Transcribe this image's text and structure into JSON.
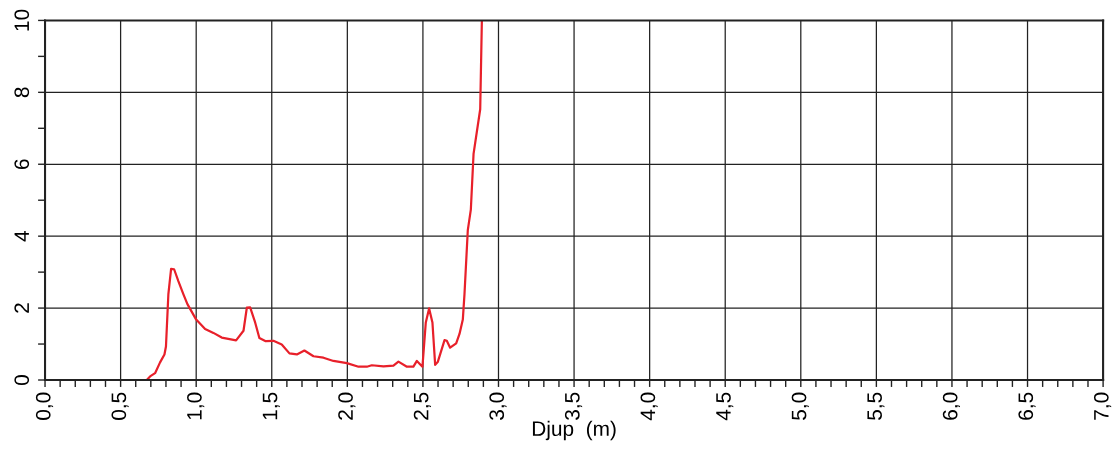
{
  "chart_data": {
    "type": "line",
    "xlabel": "Djup  (m)",
    "x": [
      0.673,
      0.695,
      0.728,
      0.761,
      0.79,
      0.8,
      0.816,
      0.834,
      0.854,
      0.882,
      0.915,
      0.942,
      1.0,
      1.059,
      1.114,
      1.169,
      1.264,
      1.313,
      1.335,
      1.357,
      1.39,
      1.418,
      1.46,
      1.511,
      1.566,
      1.617,
      1.666,
      1.716,
      1.776,
      1.842,
      1.908,
      1.997,
      2.074,
      2.129,
      2.162,
      2.239,
      2.305,
      2.338,
      2.394,
      2.437,
      2.46,
      2.497,
      2.519,
      2.541,
      2.563,
      2.581,
      2.599,
      2.643,
      2.658,
      2.68,
      2.72,
      2.742,
      2.764,
      2.775,
      2.797,
      2.817,
      2.835,
      2.879,
      2.89
    ],
    "series": [
      {
        "color": "#e8202a",
        "values": [
          0,
          0.1,
          0.19,
          0.49,
          0.71,
          0.93,
          2.39,
          3.09,
          3.08,
          2.75,
          2.39,
          2.11,
          1.68,
          1.42,
          1.31,
          1.18,
          1.1,
          1.37,
          2.01,
          2.02,
          1.6,
          1.17,
          1.08,
          1.09,
          0.99,
          0.74,
          0.71,
          0.82,
          0.66,
          0.62,
          0.53,
          0.47,
          0.37,
          0.37,
          0.41,
          0.38,
          0.4,
          0.51,
          0.37,
          0.37,
          0.53,
          0.37,
          1.6,
          1.99,
          1.6,
          0.42,
          0.51,
          1.11,
          1.09,
          0.9,
          1.02,
          1.28,
          1.68,
          2.39,
          4.17,
          4.74,
          6.29,
          7.53,
          10
        ]
      }
    ],
    "xlim": [
      0,
      7
    ],
    "ylim": [
      0,
      10
    ],
    "xticks": [
      {
        "value": 0,
        "label": "0,0"
      },
      {
        "value": 0.1,
        "label": null
      },
      {
        "value": 0.2,
        "label": null
      },
      {
        "value": 0.3,
        "label": null
      },
      {
        "value": 0.4,
        "label": null
      },
      {
        "value": 0.5,
        "label": "0,5"
      },
      {
        "value": 0.6,
        "label": null
      },
      {
        "value": 0.7,
        "label": null
      },
      {
        "value": 0.8,
        "label": null
      },
      {
        "value": 0.9,
        "label": null
      },
      {
        "value": 1,
        "label": "1,0"
      },
      {
        "value": 1.1,
        "label": null
      },
      {
        "value": 1.2,
        "label": null
      },
      {
        "value": 1.3,
        "label": null
      },
      {
        "value": 1.4,
        "label": null
      },
      {
        "value": 1.5,
        "label": "1,5"
      },
      {
        "value": 1.6,
        "label": null
      },
      {
        "value": 1.7,
        "label": null
      },
      {
        "value": 1.8,
        "label": null
      },
      {
        "value": 1.9,
        "label": null
      },
      {
        "value": 2,
        "label": "2,0"
      },
      {
        "value": 2.1,
        "label": null
      },
      {
        "value": 2.2,
        "label": null
      },
      {
        "value": 2.3,
        "label": null
      },
      {
        "value": 2.4,
        "label": null
      },
      {
        "value": 2.5,
        "label": "2,5"
      },
      {
        "value": 2.6,
        "label": null
      },
      {
        "value": 2.7,
        "label": null
      },
      {
        "value": 2.8,
        "label": null
      },
      {
        "value": 2.9,
        "label": null
      },
      {
        "value": 3,
        "label": "3,0"
      },
      {
        "value": 3.1,
        "label": null
      },
      {
        "value": 3.2,
        "label": null
      },
      {
        "value": 3.3,
        "label": null
      },
      {
        "value": 3.4,
        "label": null
      },
      {
        "value": 3.5,
        "label": "3,5"
      },
      {
        "value": 3.6,
        "label": null
      },
      {
        "value": 3.7,
        "label": null
      },
      {
        "value": 3.8,
        "label": null
      },
      {
        "value": 3.9,
        "label": null
      },
      {
        "value": 4,
        "label": "4,0"
      },
      {
        "value": 4.1,
        "label": null
      },
      {
        "value": 4.2,
        "label": null
      },
      {
        "value": 4.3,
        "label": null
      },
      {
        "value": 4.4,
        "label": null
      },
      {
        "value": 4.5,
        "label": "4,5"
      },
      {
        "value": 4.6,
        "label": null
      },
      {
        "value": 4.7,
        "label": null
      },
      {
        "value": 4.8,
        "label": null
      },
      {
        "value": 4.9,
        "label": null
      },
      {
        "value": 5,
        "label": "5,0"
      },
      {
        "value": 5.1,
        "label": null
      },
      {
        "value": 5.2,
        "label": null
      },
      {
        "value": 5.3,
        "label": null
      },
      {
        "value": 5.4,
        "label": null
      },
      {
        "value": 5.5,
        "label": "5,5"
      },
      {
        "value": 5.6,
        "label": null
      },
      {
        "value": 5.7,
        "label": null
      },
      {
        "value": 5.8,
        "label": null
      },
      {
        "value": 5.9,
        "label": null
      },
      {
        "value": 6,
        "label": "6,0"
      },
      {
        "value": 6.1,
        "label": null
      },
      {
        "value": 6.2,
        "label": null
      },
      {
        "value": 6.3,
        "label": null
      },
      {
        "value": 6.4,
        "label": null
      },
      {
        "value": 6.5,
        "label": "6,5"
      },
      {
        "value": 6.6,
        "label": null
      },
      {
        "value": 6.7,
        "label": null
      },
      {
        "value": 6.8,
        "label": null
      },
      {
        "value": 6.9,
        "label": null
      },
      {
        "value": 7,
        "label": "7,0"
      }
    ],
    "yticks": [
      0,
      {
        "value": 1,
        "label": null
      },
      2,
      {
        "value": 3,
        "label": null
      },
      4,
      {
        "value": 5,
        "label": null
      },
      6,
      {
        "value": 7,
        "label": null
      },
      8,
      {
        "value": 9,
        "label": null
      },
      10
    ],
    "grid": true,
    "marker": "none",
    "line_style": "solid"
  }
}
